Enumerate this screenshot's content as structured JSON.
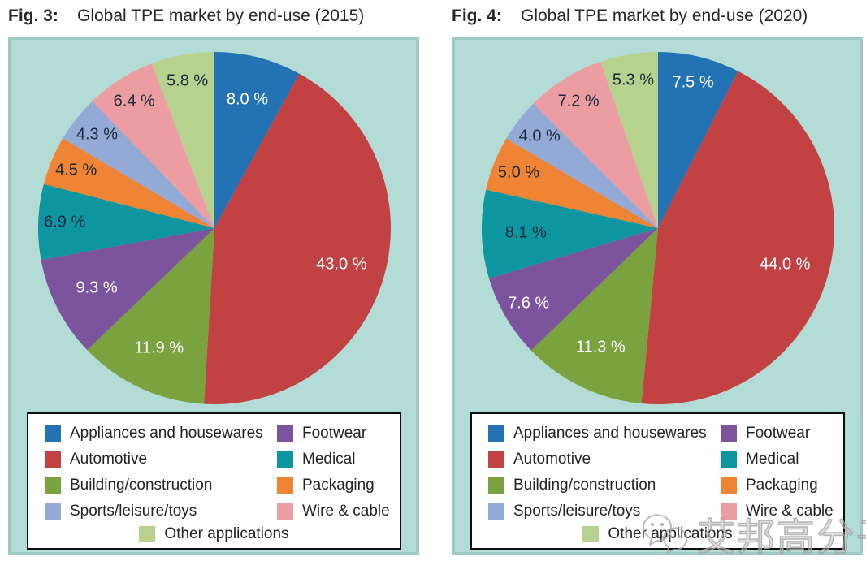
{
  "figures": [
    {
      "label": "Fig. 3:",
      "title": "Global TPE market by end-use (2015)"
    },
    {
      "label": "Fig. 4:",
      "title": "Global TPE market by end-use (2020)"
    }
  ],
  "chart_data": [
    {
      "type": "pie",
      "title": "Global TPE market by end-use (2015)",
      "categories": [
        "Appliances and housewares",
        "Automotive",
        "Building/construction",
        "Footwear",
        "Medical",
        "Packaging",
        "Sports/leisure/toys",
        "Wire & cable",
        "Other applications"
      ],
      "values": [
        8.0,
        43.0,
        11.9,
        9.3,
        6.9,
        4.5,
        4.3,
        6.4,
        5.8
      ],
      "labels": [
        "8.0 %",
        "43.0 %",
        "11.9 %",
        "9.3 %",
        "6.9 %",
        "4.5 %",
        "4.3 %",
        "6.4 %",
        "5.8 %"
      ],
      "colors": [
        "#2272b4",
        "#c24143",
        "#7aa23f",
        "#7c549e",
        "#0d95a0",
        "#ee8434",
        "#94aad6",
        "#eb9da2",
        "#b7d18f"
      ],
      "label_colors": [
        "#ffffff",
        "#ffffff",
        "#ffffff",
        "#ffffff",
        "#1b2a3a",
        "#1b2a3a",
        "#1b2a3a",
        "#1b2a3a",
        "#1b2a3a"
      ],
      "start_angle_deg": 0,
      "direction": "clockwise",
      "legend_position": "bottom"
    },
    {
      "type": "pie",
      "title": "Global TPE market by end-use (2020)",
      "categories": [
        "Appliances and housewares",
        "Automotive",
        "Building/construction",
        "Footwear",
        "Medical",
        "Packaging",
        "Sports/leisure/toys",
        "Wire & cable",
        "Other applications"
      ],
      "values": [
        7.5,
        44.0,
        11.3,
        7.6,
        8.1,
        5.0,
        4.0,
        7.2,
        5.3
      ],
      "labels": [
        "7.5 %",
        "44.0 %",
        "11.3 %",
        "7.6 %",
        "8.1 %",
        "5.0 %",
        "4.0 %",
        "7.2 %",
        "5.3 %"
      ],
      "colors": [
        "#2272b4",
        "#c24143",
        "#7aa23f",
        "#7c549e",
        "#0d95a0",
        "#ee8434",
        "#94aad6",
        "#eb9da2",
        "#b7d18f"
      ],
      "label_colors": [
        "#ffffff",
        "#ffffff",
        "#ffffff",
        "#ffffff",
        "#1b2a3a",
        "#1b2a3a",
        "#1b2a3a",
        "#1b2a3a",
        "#1b2a3a"
      ],
      "start_angle_deg": 0,
      "direction": "clockwise",
      "legend_position": "bottom"
    }
  ],
  "legend": {
    "columns": [
      [
        "Appliances and housewares",
        "Automotive",
        "Building/construction",
        "Sports/leisure/toys"
      ],
      [
        "Footwear",
        "Medical",
        "Packaging",
        "Wire & cable"
      ]
    ],
    "centered": "Other applications"
  },
  "watermark": {
    "text": "艾邦高分子",
    "icon": "wechat-smiley-icon"
  },
  "colors": {
    "panel_bg": "#b4dcd7",
    "panel_border": "#9ccbc4",
    "legend_border": "#0d0d0d",
    "title_text": "#272727",
    "dark_label": "#1b2a3a",
    "watermark_gray": "#a0a0a0"
  }
}
